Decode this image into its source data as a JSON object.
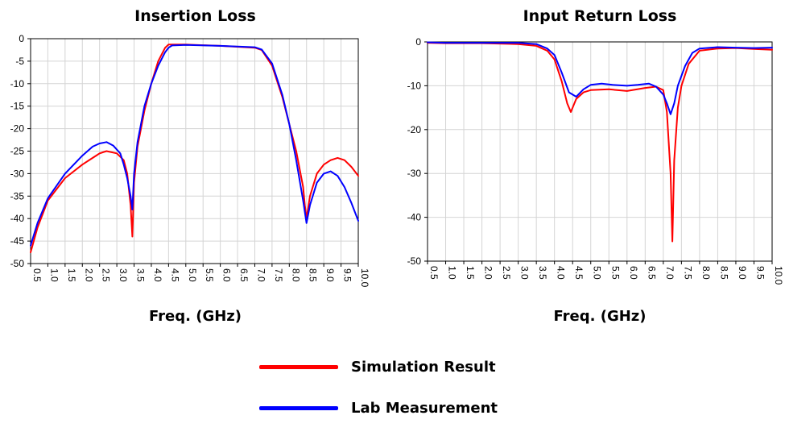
{
  "colors": {
    "simulation": "#ff0000",
    "measurement": "#0000ff",
    "grid": "#d4d4d4"
  },
  "legend": [
    {
      "label": "Simulation Result",
      "color": "#ff0000"
    },
    {
      "label": "Lab Measurement",
      "color": "#0000ff"
    }
  ],
  "chart_data": [
    {
      "type": "line",
      "title": "Insertion Loss",
      "xlabel": "Freq. (GHz)",
      "ylabel": "",
      "xlim": [
        0.5,
        10.0
      ],
      "ylim": [
        -50,
        0
      ],
      "xticks": [
        "0.5",
        "1.0",
        "1.5",
        "2.0",
        "2.5",
        "3.0",
        "3.5",
        "4.0",
        "4.5",
        "5.0",
        "5.5",
        "6.0",
        "6.5",
        "7.0",
        "7.5",
        "8.0",
        "8.5",
        "9.0",
        "9.5",
        "10.0"
      ],
      "yticks": [
        "0",
        "-5",
        "-10",
        "-15",
        "-20",
        "-25",
        "-30",
        "-35",
        "-40",
        "-45",
        "-50"
      ],
      "grid": true,
      "series": [
        {
          "name": "Simulation Result",
          "color": "#ff0000",
          "x": [
            0.5,
            0.7,
            1.0,
            1.5,
            2.0,
            2.3,
            2.4,
            2.5,
            2.7,
            3.0,
            3.2,
            3.3,
            3.4,
            3.45,
            3.5,
            3.6,
            3.8,
            4.0,
            4.2,
            4.4,
            4.5,
            5.0,
            6.0,
            7.0,
            7.2,
            7.5,
            7.8,
            8.0,
            8.2,
            8.4,
            8.45,
            8.5,
            8.6,
            8.8,
            9.0,
            9.2,
            9.4,
            9.6,
            9.8,
            10.0
          ],
          "y": [
            -47.5,
            -42,
            -36,
            -31,
            -28,
            -26.5,
            -26,
            -25.5,
            -25,
            -25.5,
            -27,
            -30,
            -37,
            -44,
            -32,
            -24,
            -16,
            -10,
            -5,
            -2,
            -1.3,
            -1.3,
            -1.6,
            -2,
            -2.5,
            -6,
            -13,
            -19,
            -25,
            -33,
            -37,
            -40,
            -35,
            -30,
            -28,
            -27,
            -26.5,
            -27,
            -28.5,
            -30.5
          ]
        },
        {
          "name": "Lab Measurement",
          "color": "#0000ff",
          "x": [
            0.5,
            0.7,
            1.0,
            1.5,
            2.0,
            2.3,
            2.5,
            2.7,
            2.9,
            3.1,
            3.2,
            3.3,
            3.4,
            3.45,
            3.5,
            3.6,
            3.8,
            4.0,
            4.2,
            4.4,
            4.5,
            4.6,
            5.0,
            6.0,
            7.0,
            7.2,
            7.5,
            7.8,
            8.0,
            8.2,
            8.4,
            8.5,
            8.6,
            8.8,
            9.0,
            9.2,
            9.4,
            9.6,
            9.8,
            10.0
          ],
          "y": [
            -46,
            -41,
            -35.5,
            -30,
            -26,
            -24,
            -23.3,
            -23,
            -23.8,
            -25.5,
            -28,
            -31,
            -35,
            -38,
            -30,
            -23,
            -15,
            -10,
            -6,
            -3,
            -2,
            -1.5,
            -1.4,
            -1.6,
            -1.9,
            -2.4,
            -5.5,
            -12.5,
            -19,
            -27,
            -36,
            -41,
            -37,
            -32,
            -30,
            -29.5,
            -30.5,
            -33,
            -36.5,
            -40.5
          ]
        }
      ]
    },
    {
      "type": "line",
      "title": "Input Return Loss",
      "xlabel": "Freq. (GHz)",
      "ylabel": "",
      "xlim": [
        0.5,
        10.0
      ],
      "ylim": [
        -50,
        0
      ],
      "xticks": [
        "0.5",
        "1.0",
        "1.5",
        "2.0",
        "2.5",
        "3.0",
        "3.5",
        "4.0",
        "4.5",
        "5.0",
        "5.5",
        "6.0",
        "6.5",
        "7.0",
        "7.5",
        "8.0",
        "8.5",
        "9.0",
        "9.5",
        "10.0"
      ],
      "yticks": [
        "0",
        "-10",
        "-20",
        "-30",
        "-40",
        "-50"
      ],
      "grid": true,
      "series": [
        {
          "name": "Simulation Result",
          "color": "#ff0000",
          "x": [
            0.5,
            1.0,
            2.0,
            3.0,
            3.5,
            3.8,
            4.0,
            4.2,
            4.35,
            4.45,
            4.6,
            4.8,
            5.0,
            5.5,
            6.0,
            6.5,
            6.8,
            7.0,
            7.1,
            7.2,
            7.25,
            7.3,
            7.4,
            7.5,
            7.7,
            8.0,
            8.5,
            9.0,
            9.5,
            10.0
          ],
          "y": [
            -0.2,
            -0.3,
            -0.3,
            -0.5,
            -0.9,
            -2,
            -4,
            -9,
            -14,
            -16,
            -13,
            -11.5,
            -11,
            -10.8,
            -11.2,
            -10.5,
            -10.2,
            -11,
            -16,
            -30,
            -45.5,
            -27,
            -15,
            -10,
            -5,
            -2,
            -1.5,
            -1.4,
            -1.6,
            -1.8
          ]
        },
        {
          "name": "Lab Measurement",
          "color": "#0000ff",
          "x": [
            0.5,
            1.0,
            2.0,
            3.0,
            3.5,
            3.8,
            4.0,
            4.2,
            4.4,
            4.6,
            4.8,
            5.0,
            5.3,
            5.6,
            6.0,
            6.3,
            6.6,
            6.8,
            7.0,
            7.1,
            7.2,
            7.3,
            7.4,
            7.6,
            7.8,
            8.0,
            8.5,
            9.0,
            9.5,
            10.0
          ],
          "y": [
            -0.1,
            -0.2,
            -0.2,
            -0.2,
            -0.5,
            -1.5,
            -3,
            -7,
            -11.5,
            -12.5,
            -10.8,
            -9.8,
            -9.5,
            -9.8,
            -10,
            -9.8,
            -9.5,
            -10.2,
            -12,
            -14,
            -16.5,
            -14,
            -10,
            -5.5,
            -2.5,
            -1.5,
            -1.2,
            -1.3,
            -1.4,
            -1.3
          ]
        }
      ]
    }
  ]
}
